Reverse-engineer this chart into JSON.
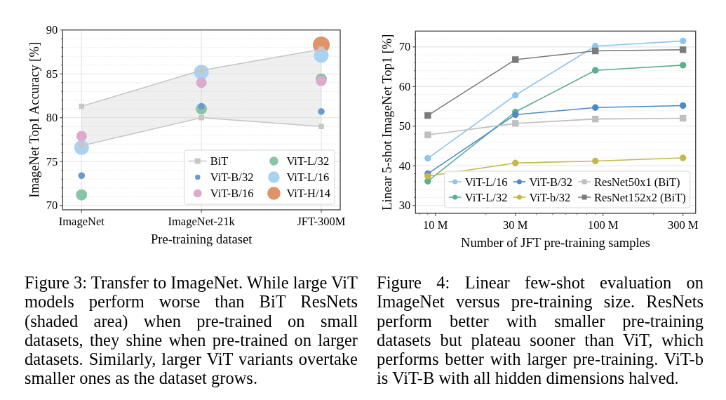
{
  "chart_data": [
    {
      "type": "bubble",
      "categories": [
        "ImageNet",
        "ImageNet-21k",
        "JFT-300M"
      ],
      "xlabel": "Pre-training dataset",
      "ylabel": "ImageNet Top1 Accuracy [%]",
      "ylim": [
        69.5,
        90
      ],
      "yticks": [
        70,
        {
          "value": 71,
          "label": null
        },
        {
          "value": 72,
          "label": null
        },
        {
          "value": 73,
          "label": null
        },
        {
          "value": 74,
          "label": null
        },
        75,
        {
          "value": 76,
          "label": null
        },
        {
          "value": 77,
          "label": null
        },
        {
          "value": 78,
          "label": null
        },
        {
          "value": 79,
          "label": null
        },
        80,
        {
          "value": 81,
          "label": null
        },
        {
          "value": 82,
          "label": null
        },
        {
          "value": 83,
          "label": null
        },
        {
          "value": 84,
          "label": null
        },
        85,
        {
          "value": 86,
          "label": null
        },
        {
          "value": 87,
          "label": null
        },
        {
          "value": 88,
          "label": null
        },
        {
          "value": 89,
          "label": null
        },
        90
      ],
      "grid": true,
      "legend": "bottom right",
      "annotations": [
        "Figure 3: Transfer to ImageNet. While large ViT models perform worse than BiT ResNets (shaded area) when pre-trained on small datasets, they shine when pre-trained on larger datasets. Similarly, larger ViT variants overtake smaller ones as the dataset grows."
      ],
      "series": [
        {
          "name": "BiT",
          "type": "line",
          "marker": "square",
          "color": "#c6c6c6",
          "values": [
            81.3,
            85.4,
            87.8
          ],
          "lower": [
            76.8,
            80.0,
            79.0
          ],
          "upper": [
            81.3,
            85.4,
            87.8
          ]
        },
        {
          "type": "line",
          "marker": "square",
          "color": "#c6c6c6",
          "values": [
            76.8,
            80.0,
            79.0
          ]
        },
        {
          "name": "ViT-B/32",
          "color": "#6a9bcf",
          "values": [
            73.4,
            81.3,
            80.7
          ],
          "sizes": [
            0.16,
            0.16,
            0.16
          ]
        },
        {
          "name": "ViT-B/16",
          "color": "#dcaacb",
          "values": [
            77.9,
            84.0,
            84.2
          ],
          "sizes": [
            0.39,
            0.39,
            0.39
          ]
        },
        {
          "name": "ViT-L/32",
          "color": "#88c4a5",
          "values": [
            71.2,
            81.0,
            84.4
          ],
          "sizes": [
            0.44,
            0.44,
            0.44
          ]
        },
        {
          "name": "ViT-L/16",
          "color": "#a9d3f3",
          "values": [
            76.6,
            85.2,
            87.1
          ],
          "sizes": [
            0.77,
            0.77,
            0.77
          ]
        },
        {
          "name": "ViT-H/14",
          "color": "#df9468",
          "values": [
            null,
            null,
            88.3
          ],
          "sizes": [
            null,
            null,
            1
          ]
        }
      ]
    },
    {
      "type": "line",
      "x": [
        9,
        30,
        90,
        300
      ],
      "log": "x",
      "xlim": [
        7.6,
        357
      ],
      "xticks": [
        {
          "value": 8,
          "label": null
        },
        {
          "value": 9,
          "label": null
        },
        {
          "value": 10,
          "label": "10 M"
        },
        {
          "value": 20,
          "label": null
        },
        {
          "value": 30,
          "label": "30 M"
        },
        {
          "value": 40,
          "label": null
        },
        {
          "value": 50,
          "label": null
        },
        {
          "value": 60,
          "label": null
        },
        {
          "value": 70,
          "label": null
        },
        {
          "value": 80,
          "label": null
        },
        {
          "value": 90,
          "label": null
        },
        {
          "value": 100,
          "label": "100 M"
        },
        {
          "value": 200,
          "label": null
        },
        {
          "value": 300,
          "label": "300 M"
        }
      ],
      "ylim": [
        28,
        74
      ],
      "yticks": [
        30,
        {
          "value": 32,
          "label": null
        },
        {
          "value": 34,
          "label": null
        },
        {
          "value": 36,
          "label": null
        },
        {
          "value": 38,
          "label": null
        },
        40,
        {
          "value": 42,
          "label": null
        },
        {
          "value": 44,
          "label": null
        },
        {
          "value": 46,
          "label": null
        },
        {
          "value": 48,
          "label": null
        },
        50,
        {
          "value": 52,
          "label": null
        },
        {
          "value": 54,
          "label": null
        },
        {
          "value": 56,
          "label": null
        },
        {
          "value": 58,
          "label": null
        },
        60,
        {
          "value": 62,
          "label": null
        },
        {
          "value": 64,
          "label": null
        },
        {
          "value": 66,
          "label": null
        },
        {
          "value": 68,
          "label": null
        },
        70,
        {
          "value": 72,
          "label": null
        }
      ],
      "xlabel": "Number of JFT pre-training samples",
      "ylabel": "Linear 5-shot ImageNet Top1 [%]",
      "grid": "y",
      "legend": "bottom right",
      "marker": "circle",
      "annotations": [
        "Figure 4: Linear few-shot evaluation on ImageNet versus pre-training size. ResNets perform better with smaller pre-training datasets but plateau sooner than ViT, which performs better with larger pre-training. ViT-b is ViT-B with all hidden dimensions halved."
      ],
      "series": [
        {
          "name": "ViT-L/16",
          "color": "#8ec6ee",
          "values": [
            41.9,
            57.8,
            70.2,
            71.5
          ]
        },
        {
          "name": "ViT-L/32",
          "color": "#5fae8e",
          "values": [
            36.1,
            53.6,
            64.1,
            65.4
          ]
        },
        {
          "name": "ViT-B/32",
          "color": "#4d8ac6",
          "values": [
            38.0,
            52.9,
            54.7,
            55.2
          ]
        },
        {
          "name": "ViT-b/32",
          "color": "#c5b84a",
          "values": [
            37.4,
            40.7,
            41.2,
            42.0
          ]
        },
        {
          "name": "ResNet50x1 (BiT)",
          "color": "#bfbfbf",
          "marker": "square",
          "values": [
            47.8,
            50.7,
            51.8,
            52.0
          ]
        },
        {
          "name": "ResNet152x2 (BiT)",
          "color": "#7b7b7b",
          "marker": "square",
          "values": [
            52.7,
            66.8,
            69.0,
            69.3
          ]
        }
      ]
    }
  ]
}
